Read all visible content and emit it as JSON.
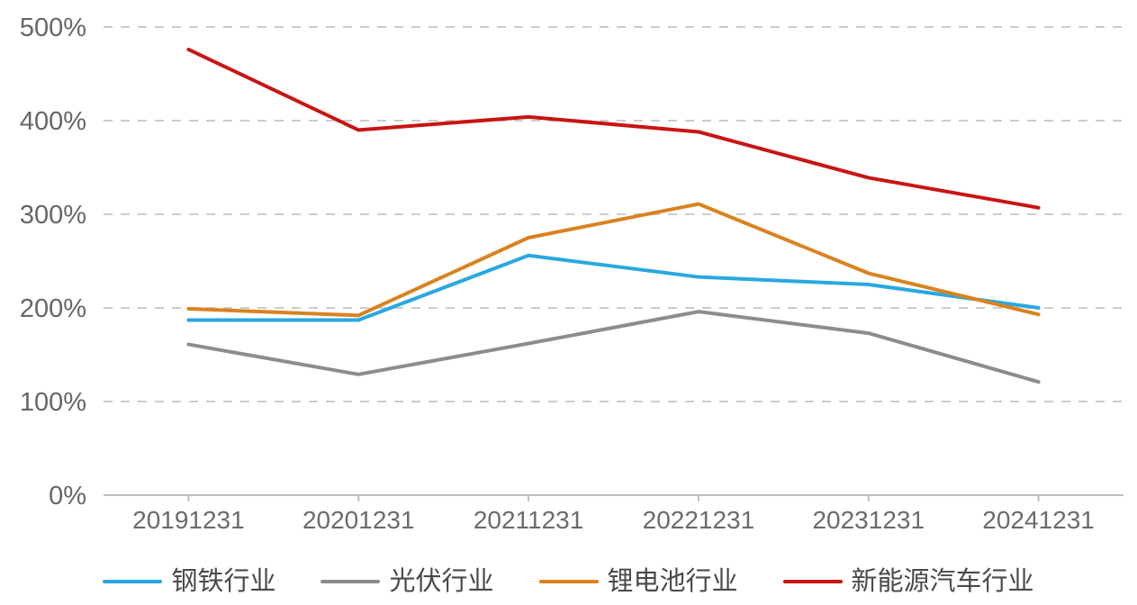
{
  "chart_data": {
    "type": "line",
    "title": "",
    "xlabel": "",
    "ylabel": "",
    "categories": [
      "20191231",
      "20201231",
      "20211231",
      "20221231",
      "20231231",
      "20241231"
    ],
    "series": [
      {
        "id": "steel-industry",
        "name": "钢铁行业",
        "color": "#29A8E0",
        "values": [
          187,
          187,
          256,
          233,
          225,
          200
        ]
      },
      {
        "id": "photovoltaic-industry",
        "name": "光伏行业",
        "color": "#8C8C8C",
        "values": [
          161,
          129,
          162,
          196,
          173,
          121
        ]
      },
      {
        "id": "lithium-battery-industry",
        "name": "锂电池行业",
        "color": "#D9821F",
        "values": [
          199,
          192,
          275,
          311,
          237,
          193
        ]
      },
      {
        "id": "new-energy-vehicle-industry",
        "name": "新能源汽车行业",
        "color": "#C81414",
        "values": [
          476,
          390,
          404,
          388,
          339,
          307
        ]
      }
    ],
    "y_ticks": [
      {
        "value": 0,
        "label": "0%"
      },
      {
        "value": 100,
        "label": "100%"
      },
      {
        "value": 200,
        "label": "200%"
      },
      {
        "value": 300,
        "label": "300%"
      },
      {
        "value": 400,
        "label": "400%"
      },
      {
        "value": 500,
        "label": "500%"
      }
    ],
    "ylim": [
      0,
      500
    ],
    "grid": "dashed-horizontal",
    "legend_position": "bottom",
    "style": {
      "gridline_color": "#CCCCCC",
      "axis_line_color": "#BFBFBF",
      "tick_color": "#BFBFBF",
      "y_label_color": "#666666",
      "x_label_color": "#6b6b6b",
      "legend_text_color": "#4a4a4a",
      "background": "#FFFFFF"
    }
  }
}
